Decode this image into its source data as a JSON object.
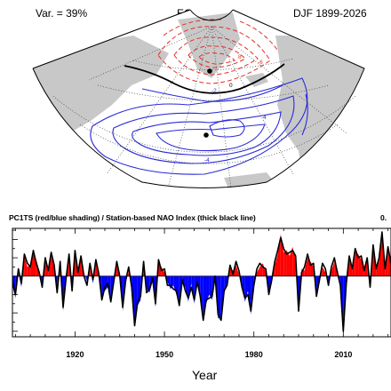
{
  "header": {
    "variance_label": "Var. = 39%",
    "map_title": "EOF1 SLP",
    "period": "DJF 1899-2026"
  },
  "map": {
    "contour_labels": [
      "-6",
      "-2",
      "8",
      "0",
      "4",
      "-4"
    ],
    "colors": {
      "positive": "#e0302a",
      "negative": "#2b2bd8",
      "zero": "#000000",
      "land": "#c8c8c8"
    }
  },
  "chart_data": {
    "type": "area",
    "title": "PC1TS (red/blue shading) / Station-based NAO Index (thick black line)",
    "corner_text": "0.",
    "xlabel": "Year",
    "xlim": [
      1899,
      2026
    ],
    "xticks": [
      1920,
      1950,
      1980,
      2010
    ],
    "ylim": [
      -3.3,
      2.6
    ],
    "grid": false,
    "series": [
      {
        "style": "shading",
        "x": [
          1899,
          1900,
          1901,
          1902,
          1903,
          1904,
          1905,
          1906,
          1907,
          1908,
          1909,
          1910,
          1911,
          1912,
          1913,
          1914,
          1915,
          1916,
          1917,
          1918,
          1919,
          1920,
          1921,
          1922,
          1923,
          1924,
          1925,
          1926,
          1927,
          1928,
          1929,
          1930,
          1931,
          1932,
          1933,
          1934,
          1935,
          1936,
          1937,
          1938,
          1939,
          1940,
          1941,
          1942,
          1943,
          1944,
          1945,
          1946,
          1947,
          1948,
          1949,
          1950,
          1951,
          1952,
          1953,
          1954,
          1955,
          1956,
          1957,
          1958,
          1959,
          1960,
          1961,
          1962,
          1963,
          1964,
          1965,
          1966,
          1967,
          1968,
          1969,
          1970,
          1971,
          1972,
          1973,
          1974,
          1975,
          1976,
          1977,
          1978,
          1979,
          1980,
          1981,
          1982,
          1983,
          1984,
          1985,
          1986,
          1987,
          1988,
          1989,
          1990,
          1991,
          1992,
          1993,
          1994,
          1995,
          1996,
          1997,
          1998,
          1999,
          2000,
          2001,
          2002,
          2003,
          2004,
          2005,
          2006,
          2007,
          2008,
          2009,
          2010,
          2011,
          2012,
          2013,
          2014,
          2015,
          2016,
          2017,
          2018,
          2019,
          2020,
          2021,
          2022,
          2023,
          2024,
          2025,
          2026
        ],
        "values": [
          -0.5,
          -1.2,
          0.2,
          -0.6,
          1.1,
          0.5,
          0.6,
          1.3,
          0.9,
          0.3,
          -0.4,
          0.8,
          0.4,
          1.1,
          0.5,
          -0.6,
          0.7,
          -1.9,
          -0.3,
          1.0,
          -0.6,
          1.2,
          0.4,
          0.9,
          0.2,
          -0.3,
          0.5,
          -0.4,
          0.7,
          0.3,
          -1.1,
          -0.8,
          -0.6,
          -1.2,
          -0.5,
          0.6,
          0.2,
          -1.9,
          -0.4,
          0.3,
          -0.8,
          -2.5,
          -1.6,
          -1.3,
          0.6,
          -0.7,
          -0.9,
          -0.3,
          -1.7,
          0.7,
          0.5,
          0.2,
          -0.3,
          -0.7,
          -0.5,
          -1.0,
          -1.4,
          -0.4,
          -0.6,
          -1.4,
          -0.4,
          -1.5,
          -0.5,
          -0.9,
          -2.2,
          -1.5,
          -1.0,
          -1.3,
          -0.2,
          -2.3,
          -2.2,
          -1.0,
          -0.3,
          0.4,
          0.3,
          0.6,
          0.1,
          -0.4,
          -1.4,
          -0.8,
          -2.1,
          -0.3,
          0.2,
          0.5,
          0.7,
          0.2,
          -0.8,
          -0.4,
          0.6,
          1.2,
          2.3,
          1.3,
          1.4,
          1.1,
          1.6,
          0.9,
          -1.7,
          0.4,
          0.3,
          1.0,
          0.8,
          0.5,
          -0.9,
          -0.4,
          0.5,
          0.2,
          -0.3,
          0.3,
          0.8,
          0.4,
          -0.3,
          -2.8,
          -0.6,
          0.9,
          0.6,
          1.3,
          1.2,
          0.9,
          0.5,
          0.8,
          -0.4,
          1.5,
          0.6,
          0.8,
          2.2,
          0.6,
          1.4,
          0.9
        ]
      },
      {
        "style": "line",
        "x": [
          1899,
          1900,
          1901,
          1902,
          1903,
          1904,
          1905,
          1906,
          1907,
          1908,
          1909,
          1910,
          1911,
          1912,
          1913,
          1914,
          1915,
          1916,
          1917,
          1918,
          1919,
          1920,
          1921,
          1922,
          1923,
          1924,
          1925,
          1926,
          1927,
          1928,
          1929,
          1930,
          1931,
          1932,
          1933,
          1934,
          1935,
          1936,
          1937,
          1938,
          1939,
          1940,
          1941,
          1942,
          1943,
          1944,
          1945,
          1946,
          1947,
          1948,
          1949,
          1950,
          1951,
          1952,
          1953,
          1954,
          1955,
          1956,
          1957,
          1958,
          1959,
          1960,
          1961,
          1962,
          1963,
          1964,
          1965,
          1966,
          1967,
          1968,
          1969,
          1970,
          1971,
          1972,
          1973,
          1974,
          1975,
          1976,
          1977,
          1978,
          1979,
          1980,
          1981,
          1982,
          1983,
          1984,
          1985,
          1986,
          1987,
          1988,
          1989,
          1990,
          1991,
          1992,
          1993,
          1994,
          1995,
          1996,
          1997,
          1998,
          1999,
          2000,
          2001,
          2002,
          2003,
          2004,
          2005,
          2006,
          2007,
          2008,
          2009,
          2010,
          2011,
          2012,
          2013,
          2014,
          2015,
          2016,
          2017,
          2018,
          2019,
          2020,
          2021,
          2022,
          2023,
          2024,
          2025,
          2026
        ],
        "values": [
          -0.3,
          -1.0,
          0.4,
          -0.4,
          1.2,
          0.7,
          0.5,
          1.4,
          0.7,
          0.2,
          -0.6,
          1.0,
          0.3,
          1.3,
          0.6,
          -0.9,
          0.8,
          -1.7,
          -0.1,
          1.2,
          -0.8,
          1.4,
          0.2,
          1.1,
          0.0,
          -0.5,
          0.7,
          -0.2,
          0.9,
          0.1,
          -1.3,
          -0.6,
          -0.4,
          -1.4,
          -0.3,
          0.8,
          0.0,
          -1.7,
          -0.2,
          0.5,
          -0.6,
          -2.7,
          -1.4,
          -1.1,
          0.8,
          -0.9,
          -0.7,
          -0.1,
          -1.5,
          0.9,
          0.3,
          0.4,
          -0.5,
          -0.5,
          -0.7,
          -0.8,
          -1.6,
          -0.2,
          -0.8,
          -1.2,
          -0.6,
          -1.3,
          -0.3,
          -1.1,
          -2.4,
          -1.3,
          -1.2,
          -1.1,
          0.0,
          -2.1,
          -2.4,
          -0.8,
          -0.5,
          0.6,
          0.1,
          0.8,
          0.3,
          -0.6,
          -1.2,
          -1.0,
          -1.9,
          -0.5,
          0.4,
          0.7,
          0.5,
          0.4,
          -1.0,
          -0.2,
          0.8,
          1.4,
          2.1,
          1.5,
          1.2,
          1.3,
          1.4,
          1.1,
          -1.9,
          0.2,
          0.5,
          1.2,
          0.6,
          0.7,
          -1.1,
          -0.2,
          0.7,
          0.4,
          -0.5,
          0.5,
          1.0,
          0.2,
          -0.5,
          -3.0,
          -0.4,
          1.1,
          0.4,
          1.5,
          1.0,
          1.1,
          0.3,
          1.0,
          -0.6,
          1.7,
          0.4,
          1.0,
          2.4,
          0.4,
          1.6,
          0.7
        ]
      }
    ],
    "colors": {
      "positive_fill": "#ff0000",
      "negative_fill": "#0000ff",
      "line": "#000000"
    }
  }
}
